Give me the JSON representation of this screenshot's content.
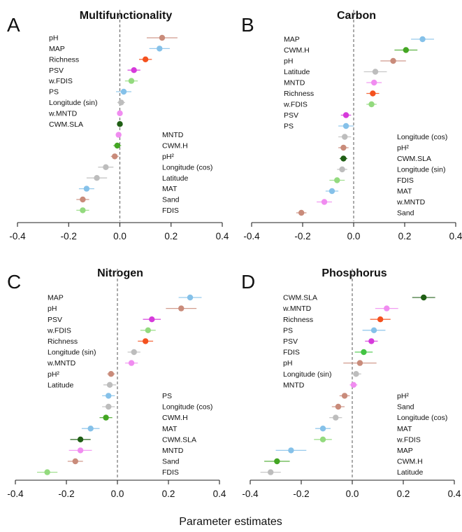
{
  "x_label": "Parameter estimates",
  "chart_data": [
    {
      "type": "scatter",
      "letter": "A",
      "title": "Multifunctionality",
      "xlim": [
        -0.4,
        0.4
      ],
      "xticks": [
        "-0.4",
        "-0.2",
        "0.0",
        "0.2",
        "0.4"
      ],
      "grid": false,
      "reference_line_x": 0,
      "points": [
        {
          "label": "pH",
          "value": 0.165,
          "lo": 0.105,
          "hi": 0.225,
          "color": "#C98B7A"
        },
        {
          "label": "MAP",
          "value": 0.155,
          "lo": 0.115,
          "hi": 0.195,
          "color": "#85C1E9"
        },
        {
          "label": "Richness",
          "value": 0.1,
          "lo": 0.075,
          "hi": 0.125,
          "color": "#F4511E"
        },
        {
          "label": "PSV",
          "value": 0.055,
          "lo": 0.03,
          "hi": 0.08,
          "color": "#D63ADB"
        },
        {
          "label": "w.FDIS",
          "value": 0.045,
          "lo": 0.02,
          "hi": 0.07,
          "color": "#93DA7E"
        },
        {
          "label": "PS",
          "value": 0.015,
          "lo": -0.015,
          "hi": 0.045,
          "color": "#85C1E9"
        },
        {
          "label": "Longitude (sin)",
          "value": 0.005,
          "lo": -0.01,
          "hi": 0.02,
          "color": "#BDBDBD"
        },
        {
          "label": "w.MNTD",
          "value": 0.0,
          "lo": -0.008,
          "hi": 0.008,
          "color": "#F08CF0"
        },
        {
          "label": "CWM.SLA",
          "value": 0.0,
          "lo": -0.006,
          "hi": 0.006,
          "color": "#1F5E14"
        },
        {
          "label": "MNTD",
          "value": -0.005,
          "lo": -0.012,
          "hi": 0.005,
          "color": "#F08CF0"
        },
        {
          "label": "CWM.H",
          "value": -0.01,
          "lo": -0.025,
          "hi": 0.005,
          "color": "#43A623"
        },
        {
          "label": "pH²",
          "value": -0.02,
          "lo": -0.035,
          "hi": -0.005,
          "color": "#C98B7A"
        },
        {
          "label": "Longitude (cos)",
          "value": -0.055,
          "lo": -0.085,
          "hi": -0.025,
          "color": "#BDBDBD"
        },
        {
          "label": "Latitude",
          "value": -0.09,
          "lo": -0.13,
          "hi": -0.05,
          "color": "#BDBDBD"
        },
        {
          "label": "MAT",
          "value": -0.13,
          "lo": -0.16,
          "hi": -0.1,
          "color": "#85C1E9"
        },
        {
          "label": "Sand",
          "value": -0.145,
          "lo": -0.17,
          "hi": -0.12,
          "color": "#C98B7A"
        },
        {
          "label": "FDIS",
          "value": -0.145,
          "lo": -0.17,
          "hi": -0.12,
          "color": "#93DA7E"
        }
      ]
    },
    {
      "type": "scatter",
      "letter": "B",
      "title": "Carbon",
      "xlim": [
        -0.4,
        0.4
      ],
      "xticks": [
        "-0.4",
        "-0.2",
        "0.0",
        "0.2",
        "0.4"
      ],
      "grid": false,
      "reference_line_x": 0,
      "points": [
        {
          "label": "MAP",
          "value": 0.27,
          "lo": 0.225,
          "hi": 0.315,
          "color": "#85C1E9"
        },
        {
          "label": "CWM.H",
          "value": 0.205,
          "lo": 0.16,
          "hi": 0.25,
          "color": "#43A623"
        },
        {
          "label": "pH",
          "value": 0.155,
          "lo": 0.105,
          "hi": 0.205,
          "color": "#C98B7A"
        },
        {
          "label": "Latitude",
          "value": 0.085,
          "lo": 0.04,
          "hi": 0.13,
          "color": "#BDBDBD"
        },
        {
          "label": "MNTD",
          "value": 0.08,
          "lo": 0.05,
          "hi": 0.11,
          "color": "#F08CF0"
        },
        {
          "label": "Richness",
          "value": 0.075,
          "lo": 0.05,
          "hi": 0.1,
          "color": "#F4511E"
        },
        {
          "label": "w.FDIS",
          "value": 0.07,
          "lo": 0.05,
          "hi": 0.09,
          "color": "#93DA7E"
        },
        {
          "label": "PSV",
          "value": -0.03,
          "lo": -0.05,
          "hi": -0.01,
          "color": "#D63ADB"
        },
        {
          "label": "PS",
          "value": -0.03,
          "lo": -0.06,
          "hi": 0.0,
          "color": "#85C1E9"
        },
        {
          "label": "Longitude (cos)",
          "value": -0.035,
          "lo": -0.06,
          "hi": -0.01,
          "color": "#BDBDBD"
        },
        {
          "label": "pH²",
          "value": -0.04,
          "lo": -0.06,
          "hi": -0.02,
          "color": "#C98B7A"
        },
        {
          "label": "CWM.SLA",
          "value": -0.04,
          "lo": -0.055,
          "hi": -0.025,
          "color": "#1F5E14"
        },
        {
          "label": "Longitude (sin)",
          "value": -0.045,
          "lo": -0.065,
          "hi": -0.025,
          "color": "#BDBDBD"
        },
        {
          "label": "FDIS",
          "value": -0.065,
          "lo": -0.095,
          "hi": -0.035,
          "color": "#93DA7E"
        },
        {
          "label": "MAT",
          "value": -0.085,
          "lo": -0.11,
          "hi": -0.06,
          "color": "#85C1E9"
        },
        {
          "label": "w.MNTD",
          "value": -0.115,
          "lo": -0.145,
          "hi": -0.085,
          "color": "#F08CF0"
        },
        {
          "label": "Sand",
          "value": -0.205,
          "lo": -0.225,
          "hi": -0.185,
          "color": "#C98B7A"
        }
      ]
    },
    {
      "type": "scatter",
      "letter": "C",
      "title": "Nitrogen",
      "xlim": [
        -0.4,
        0.4
      ],
      "xticks": [
        "-0.4",
        "-0.2",
        "0.0",
        "0.2",
        "0.4"
      ],
      "grid": false,
      "reference_line_x": 0,
      "points": [
        {
          "label": "MAP",
          "value": 0.285,
          "lo": 0.24,
          "hi": 0.33,
          "color": "#85C1E9"
        },
        {
          "label": "pH",
          "value": 0.25,
          "lo": 0.19,
          "hi": 0.31,
          "color": "#C98B7A"
        },
        {
          "label": "PSV",
          "value": 0.135,
          "lo": 0.1,
          "hi": 0.17,
          "color": "#D63ADB"
        },
        {
          "label": "w.FDIS",
          "value": 0.12,
          "lo": 0.09,
          "hi": 0.15,
          "color": "#93DA7E"
        },
        {
          "label": "Richness",
          "value": 0.11,
          "lo": 0.08,
          "hi": 0.14,
          "color": "#F4511E"
        },
        {
          "label": "Longitude (sin)",
          "value": 0.065,
          "lo": 0.04,
          "hi": 0.09,
          "color": "#BDBDBD"
        },
        {
          "label": "w.MNTD",
          "value": 0.055,
          "lo": 0.03,
          "hi": 0.08,
          "color": "#F08CF0"
        },
        {
          "label": "pH²",
          "value": -0.025,
          "lo": -0.04,
          "hi": -0.01,
          "color": "#C98B7A"
        },
        {
          "label": "Latitude",
          "value": -0.03,
          "lo": -0.055,
          "hi": -0.005,
          "color": "#BDBDBD"
        },
        {
          "label": "PS",
          "value": -0.035,
          "lo": -0.06,
          "hi": -0.01,
          "color": "#85C1E9"
        },
        {
          "label": "Longitude (cos)",
          "value": -0.035,
          "lo": -0.06,
          "hi": -0.01,
          "color": "#BDBDBD"
        },
        {
          "label": "CWM.H",
          "value": -0.045,
          "lo": -0.07,
          "hi": -0.02,
          "color": "#43A623"
        },
        {
          "label": "MAT",
          "value": -0.105,
          "lo": -0.14,
          "hi": -0.07,
          "color": "#85C1E9"
        },
        {
          "label": "CWM.SLA",
          "value": -0.145,
          "lo": -0.185,
          "hi": -0.105,
          "color": "#1F5E14"
        },
        {
          "label": "MNTD",
          "value": -0.145,
          "lo": -0.19,
          "hi": -0.1,
          "color": "#F08CF0"
        },
        {
          "label": "Sand",
          "value": -0.165,
          "lo": -0.195,
          "hi": -0.135,
          "color": "#C98B7A"
        },
        {
          "label": "FDIS",
          "value": -0.275,
          "lo": -0.315,
          "hi": -0.235,
          "color": "#93DA7E"
        }
      ]
    },
    {
      "type": "scatter",
      "letter": "D",
      "title": "Phosphorus",
      "xlim": [
        -0.4,
        0.4
      ],
      "xticks": [
        "-0.4",
        "-0.2",
        "0.0",
        "0.2",
        "0.4"
      ],
      "grid": false,
      "reference_line_x": 0,
      "points": [
        {
          "label": "CWM.SLA",
          "value": 0.28,
          "lo": 0.235,
          "hi": 0.325,
          "color": "#1F5E14"
        },
        {
          "label": "w.MNTD",
          "value": 0.135,
          "lo": 0.09,
          "hi": 0.18,
          "color": "#F08CF0"
        },
        {
          "label": "Richness",
          "value": 0.11,
          "lo": 0.07,
          "hi": 0.15,
          "color": "#F4511E"
        },
        {
          "label": "PS",
          "value": 0.085,
          "lo": 0.04,
          "hi": 0.13,
          "color": "#85C1E9"
        },
        {
          "label": "PSV",
          "value": 0.075,
          "lo": 0.05,
          "hi": 0.1,
          "color": "#D63ADB"
        },
        {
          "label": "FDIS",
          "value": 0.045,
          "lo": 0.01,
          "hi": 0.08,
          "color": "#43C443"
        },
        {
          "label": "pH",
          "value": 0.03,
          "lo": -0.035,
          "hi": 0.095,
          "color": "#C98B7A"
        },
        {
          "label": "Longitude (sin)",
          "value": 0.015,
          "lo": -0.005,
          "hi": 0.035,
          "color": "#BDBDBD"
        },
        {
          "label": "MNTD",
          "value": 0.005,
          "lo": -0.01,
          "hi": 0.02,
          "color": "#F08CF0"
        },
        {
          "label": "pH²",
          "value": -0.03,
          "lo": -0.05,
          "hi": -0.01,
          "color": "#C98B7A"
        },
        {
          "label": "Sand",
          "value": -0.055,
          "lo": -0.08,
          "hi": -0.03,
          "color": "#C98B7A"
        },
        {
          "label": "Longitude (cos)",
          "value": -0.065,
          "lo": -0.09,
          "hi": -0.04,
          "color": "#BDBDBD"
        },
        {
          "label": "MAT",
          "value": -0.115,
          "lo": -0.145,
          "hi": -0.085,
          "color": "#85C1E9"
        },
        {
          "label": "w.FDIS",
          "value": -0.115,
          "lo": -0.15,
          "hi": -0.08,
          "color": "#93DA7E"
        },
        {
          "label": "MAP",
          "value": -0.24,
          "lo": -0.3,
          "hi": -0.18,
          "color": "#85C1E9"
        },
        {
          "label": "CWM.H",
          "value": -0.295,
          "lo": -0.345,
          "hi": -0.245,
          "color": "#43A623"
        },
        {
          "label": "Latitude",
          "value": -0.32,
          "lo": -0.36,
          "hi": -0.28,
          "color": "#BDBDBD"
        }
      ]
    }
  ]
}
